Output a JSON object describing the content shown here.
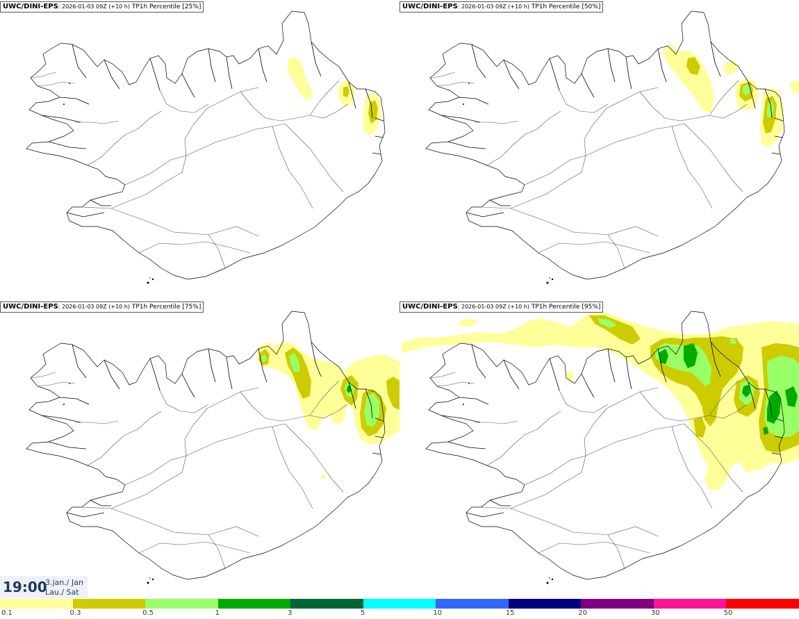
{
  "panels": [
    {
      "model": "UWC/DINI-EPS",
      "run": ": 2026-01-03 09Z (+10 h)",
      "param": " TP1h Percentile [25%]"
    },
    {
      "model": "UWC/DINI-EPS",
      "run": ": 2026-01-03 09Z (+10 h)",
      "param": " TP1h Percentile [50%]"
    },
    {
      "model": "UWC/DINI-EPS",
      "run": ": 2026-01-03 09Z (+10 h)",
      "param": " TP1h Percentile [75%]"
    },
    {
      "model": "UWC/DINI-EPS",
      "run": ": 2026-01-03 09Z (+10 h)",
      "param": " TP1h Percentile [95%]"
    }
  ],
  "valid_time": {
    "time": "19:00",
    "date_line1": "3.jan./ Jan",
    "date_line2": "Lau./ Sat"
  },
  "legend": {
    "ticks": [
      "0.1",
      "0.3",
      "0.5",
      "1",
      "3",
      "5",
      "10",
      "15",
      "20",
      "30",
      "50"
    ],
    "colors": [
      "#ffff99",
      "#cccc00",
      "#99ff66",
      "#00aa00",
      "#006633",
      "#00ffff",
      "#3366ff",
      "#000080",
      "#800080",
      "#ff1493",
      "#ff0000"
    ]
  },
  "colors": {
    "c01": "#ffff99",
    "c03": "#cccc00",
    "c05": "#99ff66",
    "c1": "#00aa00",
    "coast": "#000000",
    "roads": "#555555"
  }
}
